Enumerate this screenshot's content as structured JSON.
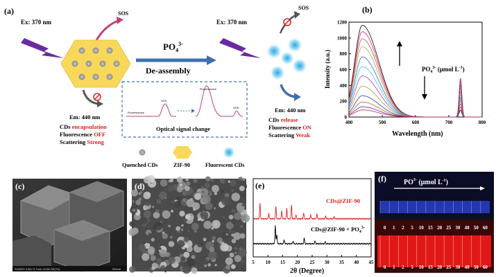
{
  "panel_a": {
    "label": "(a)",
    "ex_left": "Ex: 370 nm",
    "ex_right": "Ex: 370 nm",
    "sos_left": "SOS",
    "sos_right": "SOS",
    "em_left": "Em: 440 nm",
    "em_right": "Em: 440 nm",
    "reagent": "PO",
    "reagent_sub": "4",
    "reagent_sup": "3-",
    "process": "De-assembly",
    "left_status": [
      {
        "prefix": "CDs ",
        "word": "encapsulation"
      },
      {
        "prefix": "Fluorescence ",
        "word": "OFF"
      },
      {
        "prefix": "Scattering ",
        "word": "Strong"
      }
    ],
    "right_status": [
      {
        "prefix": "CDs ",
        "word": "release"
      },
      {
        "prefix": "Fluorescence ",
        "word": "ON"
      },
      {
        "prefix": "Scattering ",
        "word": "Weak"
      }
    ],
    "inset_fl_left": "Fluorescence",
    "inset_sos_left": "SOS",
    "inset_fl_right": "Fluorescence",
    "inset_sos_right": "SOS",
    "inset_caption": "Optical signal change",
    "legend": [
      "Quenched CDs",
      "ZIF-90",
      "Fluorescent CDs"
    ],
    "colors": {
      "zif": "#f7d85a",
      "arrow_blue": "#3f6fb0",
      "sos_pink": "#c0407a",
      "red_text": "#d82020",
      "laser": "#6a2aa0",
      "cd_blue": "#3ab0e0"
    }
  },
  "panel_b": {
    "label": "(b)",
    "ylabel": "Intensity (a.u.)",
    "xlabel": "Wavelength (nm)",
    "annotation": "PO",
    "annotation_sub": "4",
    "annotation_sup": "3-",
    "annotation_unit": " (μmol L",
    "annotation_unit_sup": "-1",
    "annotation_close": ")",
    "x_ticks": [
      "400",
      "500",
      "600",
      "700",
      "800"
    ],
    "y_ticks": [
      "0",
      "200",
      "400",
      "600",
      "800",
      "1000",
      "1200"
    ]
  },
  "chart_data": {
    "type": "line",
    "xlabel": "Wavelength (nm)",
    "ylabel": "Intensity (a.u.)",
    "xlim": [
      400,
      800
    ],
    "ylim": [
      0,
      1200
    ],
    "peak_fl_nm": 440,
    "peak_sos_nm": 735,
    "series": [
      {
        "fl_peak": 1160,
        "sos_peak": 90,
        "color": "#000000"
      },
      {
        "fl_peak": 1080,
        "sos_peak": 130,
        "color": "#d0207a"
      },
      {
        "fl_peak": 990,
        "sos_peak": 170,
        "color": "#e84040"
      },
      {
        "fl_peak": 890,
        "sos_peak": 210,
        "color": "#80c040"
      },
      {
        "fl_peak": 760,
        "sos_peak": 250,
        "color": "#4060c0"
      },
      {
        "fl_peak": 640,
        "sos_peak": 290,
        "color": "#40c8e0"
      },
      {
        "fl_peak": 520,
        "sos_peak": 330,
        "color": "#a040c0"
      },
      {
        "fl_peak": 390,
        "sos_peak": 370,
        "color": "#a0a020"
      },
      {
        "fl_peak": 270,
        "sos_peak": 410,
        "color": "#2040a0"
      },
      {
        "fl_peak": 190,
        "sos_peak": 440,
        "color": "#c06020"
      },
      {
        "fl_peak": 130,
        "sos_peak": 470,
        "color": "#6020a0"
      },
      {
        "fl_peak": 90,
        "sos_peak": 500,
        "color": "#c02060"
      }
    ]
  },
  "panel_c": {
    "label": "(c)",
    "footer": "SU8020 3.0kV 2.7mm x100k SE(TU)",
    "scale": "500nm"
  },
  "panel_d": {
    "label": "(d)"
  },
  "panel_e": {
    "label": "(e)",
    "series_top": "CDs@ZIF-90",
    "series_bottom": "CDs@ZIF-90 + PO",
    "series_bottom_sub": "4",
    "series_bottom_sup": "3-",
    "xlabel": "2θ (Degree)",
    "x_ticks": [
      "5",
      "10",
      "15",
      "20",
      "25",
      "30",
      "35",
      "40",
      "45"
    ],
    "colors": {
      "top": "#e02020",
      "bottom": "#000000"
    }
  },
  "panel_f": {
    "label": "(f)",
    "title": "PO",
    "title_sub": "4",
    "title_sup": "3-",
    "title_unit": " (μmol L",
    "title_unit_sup": "-1",
    "title_close": ")",
    "conc": [
      "0",
      "1",
      "2",
      "5",
      "10",
      "15",
      "20",
      "25",
      "30",
      "40",
      "50",
      "60"
    ]
  }
}
